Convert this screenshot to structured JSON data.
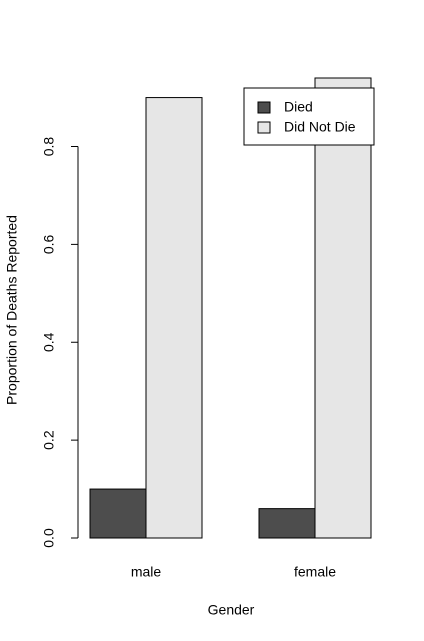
{
  "chart_data": {
    "type": "bar",
    "categories": [
      "male",
      "female"
    ],
    "series": [
      {
        "name": "Died",
        "color": "#4d4d4d",
        "values": [
          0.1,
          0.06
        ]
      },
      {
        "name": "Did Not Die",
        "color": "#e6e6e6",
        "values": [
          0.9,
          0.94
        ]
      }
    ],
    "x_label": "Gender",
    "y_label": "Proportion of Deaths Reported",
    "ylim": [
      0,
      0.94
    ],
    "yticks": [
      {
        "value": 0,
        "label": "0.0"
      },
      0.2,
      0.4,
      0.6,
      0.8
    ],
    "legend": "topright",
    "grid": false
  }
}
